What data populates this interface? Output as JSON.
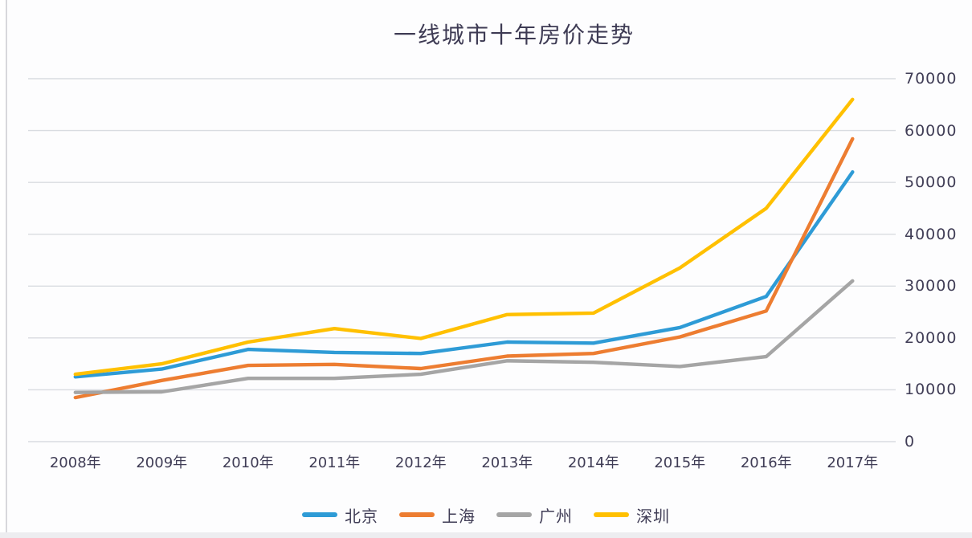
{
  "page": {
    "background": "#fdfdfe",
    "grid_color": "#d9dce1",
    "text_color": "#403d56"
  },
  "chart_data": {
    "type": "line",
    "title": "一线城市十年房价走势",
    "categories": [
      "2008年",
      "2009年",
      "2010年",
      "2011年",
      "2012年",
      "2013年",
      "2014年",
      "2015年",
      "2016年",
      "2017年"
    ],
    "series": [
      {
        "name": "北京",
        "color": "#2E9BD6",
        "values": [
          12500,
          14000,
          17800,
          17200,
          17000,
          19200,
          19000,
          22000,
          28000,
          52000
        ]
      },
      {
        "name": "上海",
        "color": "#ED7D31",
        "values": [
          8500,
          11800,
          14700,
          14900,
          14100,
          16500,
          17000,
          20200,
          25200,
          58400
        ]
      },
      {
        "name": "广州",
        "color": "#A5A5A5",
        "values": [
          9500,
          9600,
          12200,
          12200,
          13000,
          15600,
          15300,
          14500,
          16400,
          31000
        ]
      },
      {
        "name": "深圳",
        "color": "#FFC000",
        "values": [
          13000,
          15000,
          19200,
          21800,
          19900,
          24500,
          24800,
          33500,
          45000,
          66000
        ]
      }
    ],
    "y_axis": {
      "min": 0,
      "max": 70000,
      "step": 10000,
      "side": "right",
      "tick_labels": [
        "0",
        "10000",
        "20000",
        "30000",
        "40000",
        "50000",
        "60000",
        "70000"
      ]
    },
    "x_axis": {
      "label": "",
      "type": "category"
    },
    "grid": true,
    "legend_position": "bottom",
    "ylim": [
      0,
      70000
    ]
  }
}
